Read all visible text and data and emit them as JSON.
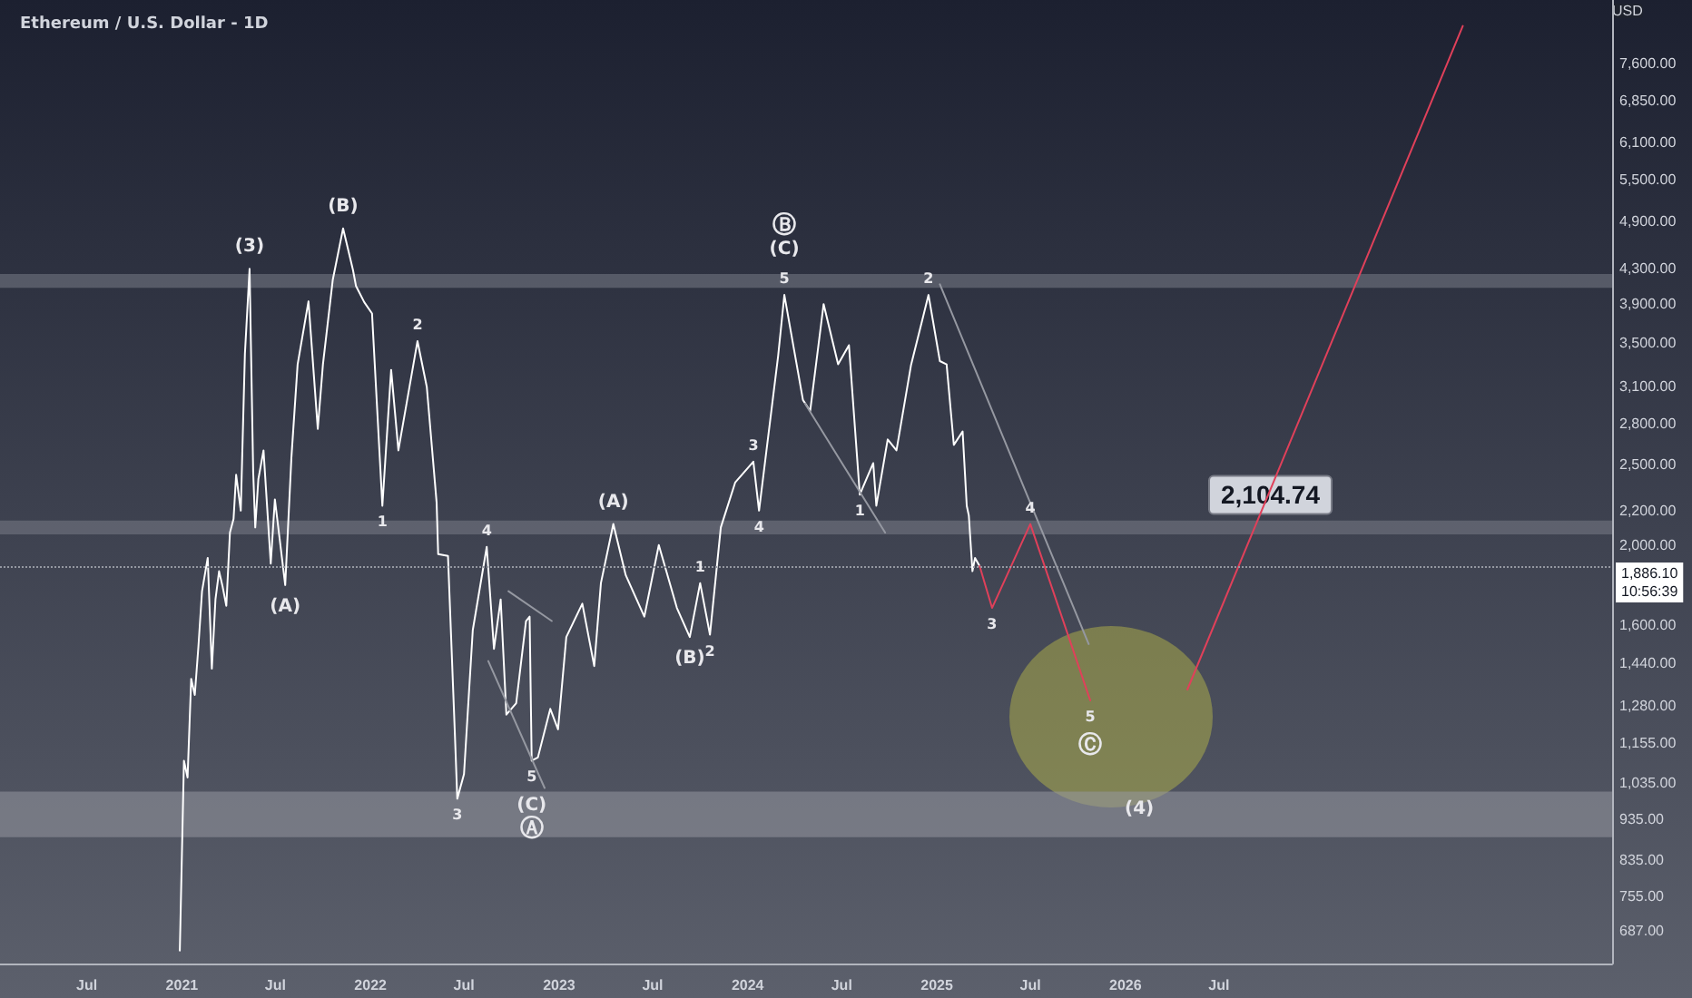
{
  "chart_data": {
    "type": "line",
    "title": "Ethereum / U.S. Dollar - 1D",
    "ylabel": "USD",
    "log": "y",
    "xlim": [
      "2020-01-15",
      "2028-07-31"
    ],
    "ylim": [
      627,
      9060
    ],
    "xticks": [
      {
        "value": "2020-07-01",
        "label": "Jul"
      },
      {
        "value": "2021-01-01",
        "label": "2021"
      },
      {
        "value": "2021-07-01",
        "label": "Jul"
      },
      {
        "value": "2022-01-01",
        "label": "2022"
      },
      {
        "value": "2022-07-01",
        "label": "Jul"
      },
      {
        "value": "2023-01-01",
        "label": "2023"
      },
      {
        "value": "2023-07-01",
        "label": "Jul"
      },
      {
        "value": "2024-01-01",
        "label": "2024"
      },
      {
        "value": "2024-07-01",
        "label": "Jul"
      },
      {
        "value": "2025-01-01",
        "label": "2025"
      },
      {
        "value": "2025-07-01",
        "label": "Jul"
      },
      {
        "value": "2026-01-01",
        "label": "2026"
      },
      {
        "value": "2026-07-01",
        "label": "Jul"
      }
    ],
    "yticks": [
      {
        "value": 687,
        "label": "687.00"
      },
      {
        "value": 755,
        "label": "755.00"
      },
      {
        "value": 835,
        "label": "835.00"
      },
      {
        "value": 935,
        "label": "935.00"
      },
      {
        "value": 1035,
        "label": "1,035.00"
      },
      {
        "value": 1155,
        "label": "1,155.00"
      },
      {
        "value": 1280,
        "label": "1,280.00"
      },
      {
        "value": 1440,
        "label": "1,440.00"
      },
      {
        "value": 1600,
        "label": "1,600.00"
      },
      {
        "value": 2000,
        "label": "2,000.00"
      },
      {
        "value": 2200,
        "label": "2,200.00"
      },
      {
        "value": 2500,
        "label": "2,500.00"
      },
      {
        "value": 2800,
        "label": "2,800.00"
      },
      {
        "value": 3100,
        "label": "3,100.00"
      },
      {
        "value": 3500,
        "label": "3,500.00"
      },
      {
        "value": 3900,
        "label": "3,900.00"
      },
      {
        "value": 4300,
        "label": "4,300.00"
      },
      {
        "value": 4900,
        "label": "4,900.00"
      },
      {
        "value": 5500,
        "label": "5,500.00"
      },
      {
        "value": 6100,
        "label": "6,100.00"
      },
      {
        "value": 6850,
        "label": "6,850.00"
      },
      {
        "value": 7600,
        "label": "7,600.00"
      }
    ],
    "series": [
      {
        "color": "#ffffff",
        "x": [
          "2020-12-28",
          "2021-01-05",
          "2021-01-12",
          "2021-01-19",
          "2021-01-26",
          "2021-02-02",
          "2021-02-09",
          "2021-02-20",
          "2021-02-28",
          "2021-03-07",
          "2021-03-14",
          "2021-03-21",
          "2021-03-28",
          "2021-04-04",
          "2021-04-11",
          "2021-04-16",
          "2021-04-25",
          "2021-05-03",
          "2021-05-12",
          "2021-05-19",
          "2021-05-23",
          "2021-05-29",
          "2021-06-08",
          "2021-06-22",
          "2021-06-30",
          "2021-07-20",
          "2021-08-01",
          "2021-08-13",
          "2021-09-03",
          "2021-09-21",
          "2021-10-01",
          "2021-10-20",
          "2021-11-09",
          "2021-11-28",
          "2021-12-04",
          "2021-12-20",
          "2022-01-04",
          "2022-01-24",
          "2022-02-10",
          "2022-02-24",
          "2022-04-02",
          "2022-04-20",
          "2022-05-09",
          "2022-05-12",
          "2022-05-31",
          "2022-06-13",
          "2022-06-18",
          "2022-07-01",
          "2022-07-18",
          "2022-08-14",
          "2022-08-28",
          "2022-09-10",
          "2022-09-21",
          "2022-10-10",
          "2022-10-29",
          "2022-11-05",
          "2022-11-09",
          "2022-11-21",
          "2022-12-15",
          "2022-12-30",
          "2023-01-15",
          "2023-02-15",
          "2023-03-10",
          "2023-03-23",
          "2023-04-16",
          "2023-05-10",
          "2023-06-15",
          "2023-07-13",
          "2023-08-17",
          "2023-09-11",
          "2023-10-01",
          "2023-10-20",
          "2023-11-10",
          "2023-12-08",
          "2024-01-12",
          "2024-01-23",
          "2024-02-29",
          "2024-03-12",
          "2024-04-17",
          "2024-05-01",
          "2024-05-27",
          "2024-06-24",
          "2024-07-15",
          "2024-08-05",
          "2024-08-31",
          "2024-09-06",
          "2024-09-28",
          "2024-10-15",
          "2024-11-12",
          "2024-12-16",
          "2025-01-07",
          "2025-01-20",
          "2025-02-03",
          "2025-02-20",
          "2025-02-28",
          "2025-03-04",
          "2025-03-11",
          "2025-03-16",
          "2025-03-25"
        ],
        "values": [
          650,
          1100,
          1050,
          1380,
          1320,
          1510,
          1760,
          1930,
          1420,
          1720,
          1860,
          1780,
          1690,
          2070,
          2150,
          2430,
          2200,
          3400,
          4300,
          2450,
          2100,
          2400,
          2600,
          1900,
          2270,
          1790,
          2550,
          3300,
          3930,
          2760,
          3300,
          4170,
          4810,
          4290,
          4100,
          3920,
          3800,
          2230,
          3250,
          2600,
          3520,
          3100,
          2250,
          1950,
          1940,
          1200,
          990,
          1060,
          1580,
          1990,
          1500,
          1720,
          1250,
          1290,
          1620,
          1640,
          1100,
          1110,
          1270,
          1200,
          1550,
          1700,
          1430,
          1800,
          2120,
          1840,
          1640,
          2000,
          1680,
          1550,
          1800,
          1560,
          2100,
          2380,
          2520,
          2200,
          3380,
          4000,
          2990,
          2900,
          3900,
          3300,
          3480,
          2300,
          2510,
          2230,
          2680,
          2600,
          3290,
          4000,
          3330,
          3300,
          2640,
          2740,
          2230,
          2170,
          1860,
          1930,
          1886.1
        ]
      },
      {
        "color": "#e0405a",
        "x": [
          "2025-03-25",
          "2025-04-18",
          "2025-07-01",
          "2025-10-25"
        ],
        "values": [
          1886.1,
          1680,
          2120,
          1300
        ]
      },
      {
        "color": "#e0405a",
        "x": [
          "2026-05-01",
          "2027-10-16"
        ],
        "values": [
          1340,
          8430
        ]
      },
      {
        "color": "#9598a1",
        "x": [
          "2022-09-25",
          "2022-12-18"
        ],
        "values": [
          1760,
          1620
        ]
      },
      {
        "color": "#9598a1",
        "x": [
          "2022-08-17",
          "2022-12-04"
        ],
        "values": [
          1450,
          1020
        ]
      },
      {
        "color": "#9598a1",
        "x": [
          "2024-04-21",
          "2024-09-23"
        ],
        "values": [
          2960,
          2070
        ]
      },
      {
        "color": "#9598a1",
        "x": [
          "2025-01-07",
          "2025-10-22"
        ],
        "values": [
          4120,
          1520
        ]
      }
    ],
    "bands": [
      {
        "axis": "y",
        "from": 4080,
        "to": 4240,
        "color": "#787b86"
      },
      {
        "axis": "y",
        "from": 2060,
        "to": 2140,
        "color": "#787b86",
        "label": "2,104.74"
      },
      {
        "axis": "y",
        "from": 890,
        "to": 1010,
        "color": "#9598a1"
      }
    ],
    "ref_lines": [
      {
        "axis": "y",
        "value": 1886.1,
        "label": "1,886.10",
        "color": "#9598a1",
        "line_style": "dotted"
      }
    ],
    "annotations": [
      "10:56:39",
      {
        "text": "(3)",
        "x": "2021-05-12",
        "y": 4300
      },
      {
        "text": "(B)",
        "x": "2021-11-09",
        "y": 4810
      },
      {
        "text": "(A)",
        "x": "2021-07-20",
        "y": 1790
      },
      {
        "text": "1",
        "x": "2022-01-24",
        "y": 2230
      },
      {
        "text": "2",
        "x": "2022-04-02",
        "y": 3520
      },
      {
        "text": "3",
        "x": "2022-06-18",
        "y": 990
      },
      {
        "text": "4",
        "x": "2022-08-14",
        "y": 1990
      },
      {
        "text": "5",
        "x": "2022-11-09",
        "y": 1100
      },
      {
        "text": "(C)",
        "x": "2022-11-09",
        "y": 1100
      },
      {
        "text": "Ⓐ",
        "x": "2022-11-09",
        "y": 1100
      },
      {
        "text": "(A)",
        "x": "2023-04-16",
        "y": 2120
      },
      {
        "text": "(B)",
        "x": "2023-09-11",
        "y": 1550
      },
      {
        "text": "1",
        "x": "2023-10-01",
        "y": 1800
      },
      {
        "text": "2",
        "x": "2023-10-20",
        "y": 1560
      },
      {
        "text": "3",
        "x": "2024-01-12",
        "y": 2520
      },
      {
        "text": "4",
        "x": "2024-01-23",
        "y": 2200
      },
      {
        "text": "5",
        "x": "2024-03-12",
        "y": 4000
      },
      {
        "text": "(C)",
        "x": "2024-03-12",
        "y": 4000
      },
      {
        "text": "Ⓑ",
        "x": "2024-03-12",
        "y": 4000
      },
      {
        "text": "1",
        "x": "2024-08-05",
        "y": 2300
      },
      {
        "text": "2",
        "x": "2024-12-16",
        "y": 4000
      },
      {
        "text": "3",
        "x": "2025-04-18",
        "y": 1680
      },
      {
        "text": "4",
        "x": "2025-07-01",
        "y": 2120
      },
      {
        "text": "5",
        "x": "2025-10-25",
        "y": 1300
      },
      {
        "text": "Ⓒ",
        "x": "2025-10-25",
        "y": 1300
      },
      {
        "text": "(4)",
        "x": "2026-01-28",
        "y": 1010
      }
    ]
  }
}
